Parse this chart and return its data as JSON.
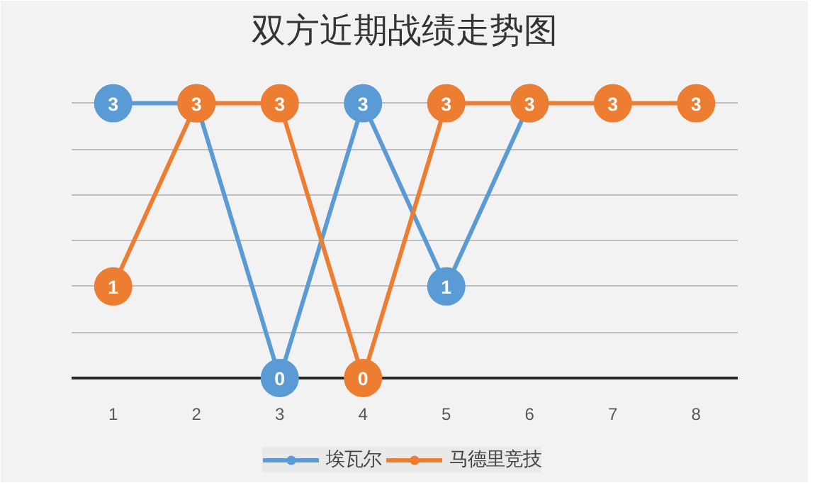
{
  "chart_data": {
    "type": "line",
    "title": "双方近期战绩走势图",
    "categories": [
      "1",
      "2",
      "3",
      "4",
      "5",
      "6",
      "7",
      "8"
    ],
    "series": [
      {
        "name": "埃瓦尔",
        "color": "#5b9bd5",
        "values": [
          3,
          3,
          0,
          3,
          1,
          3,
          null,
          null
        ],
        "value_labels": [
          "3",
          null,
          "0",
          "3",
          "1",
          null,
          null,
          null
        ]
      },
      {
        "name": "马德里竞技",
        "color": "#ed7d31",
        "values": [
          1,
          3,
          3,
          0,
          3,
          3,
          3,
          3
        ]
      }
    ],
    "ylim": [
      0,
      3.5
    ],
    "yticks": [
      {
        "value": 0,
        "label": null
      },
      {
        "value": 0.5,
        "label": null
      },
      {
        "value": 1,
        "label": null
      },
      {
        "value": 1.5,
        "label": null
      },
      {
        "value": 2,
        "label": null
      },
      {
        "value": 2.5,
        "label": null
      },
      {
        "value": 3,
        "label": null
      },
      {
        "value": 3.5,
        "label": null
      }
    ],
    "tick_labels": "x",
    "grid": "y",
    "legend": "bottom",
    "marker": "circle",
    "line_style": "solid",
    "data_labels": true
  }
}
